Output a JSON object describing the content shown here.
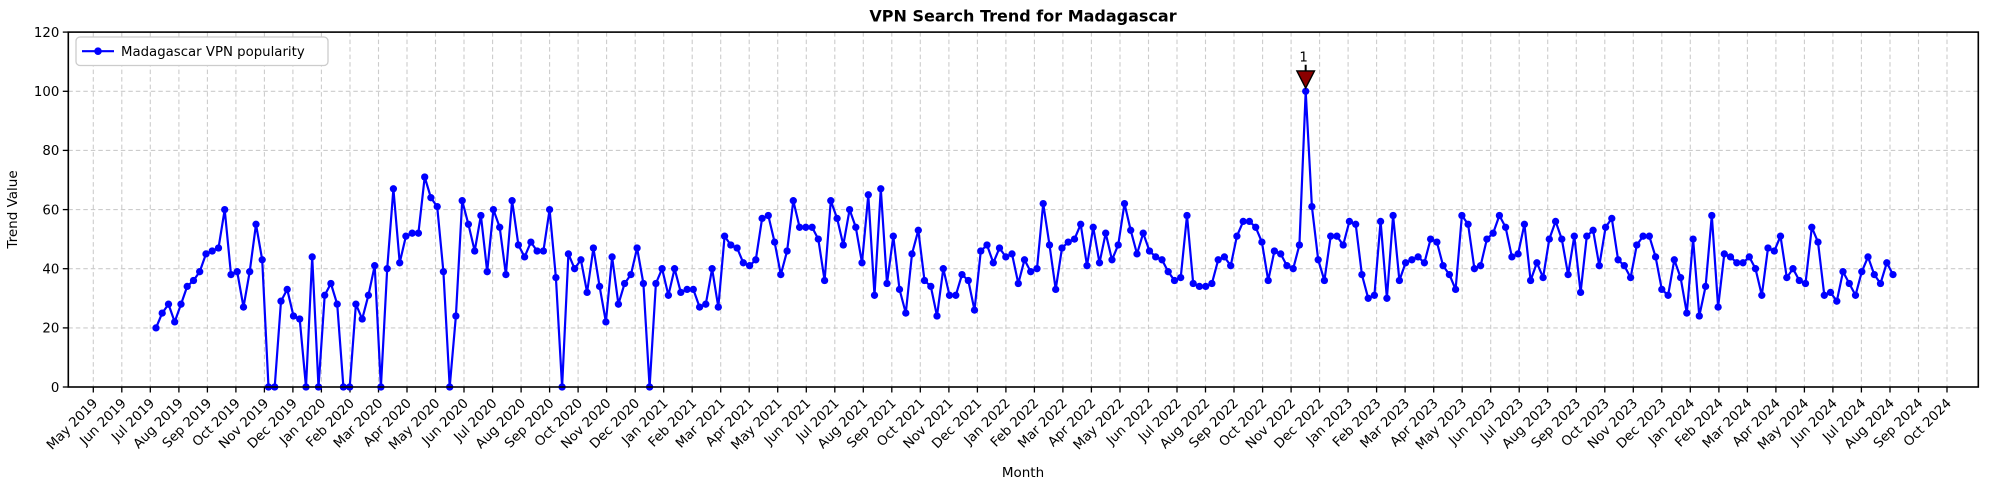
{
  "figure": {
    "background": "#ffffff"
  },
  "chart_data": {
    "type": "line",
    "title": "VPN Search Trend for Madagascar",
    "xlabel": "Month",
    "ylabel": "Trend Value",
    "grid": true,
    "legend": {
      "label": "Madagascar VPN popularity",
      "position": "upper-left",
      "line_color": "#0000ff",
      "marker": "circle"
    },
    "ylim": [
      0,
      120
    ],
    "yticks": [
      0,
      20,
      40,
      60,
      80,
      100,
      120
    ],
    "x_tick_labels": [
      "May 2019",
      "Jun 2019",
      "Jul 2019",
      "Aug 2019",
      "Sep 2019",
      "Oct 2019",
      "Nov 2019",
      "Dec 2019",
      "Jan 2020",
      "Feb 2020",
      "Mar 2020",
      "Apr 2020",
      "May 2020",
      "Jun 2020",
      "Jul 2020",
      "Aug 2020",
      "Sep 2020",
      "Oct 2020",
      "Nov 2020",
      "Dec 2020",
      "Jan 2021",
      "Feb 2021",
      "Mar 2021",
      "Apr 2021",
      "May 2021",
      "Jun 2021",
      "Jul 2021",
      "Aug 2021",
      "Sep 2021",
      "Oct 2021",
      "Nov 2021",
      "Dec 2021",
      "Jan 2022",
      "Feb 2022",
      "Mar 2022",
      "Apr 2022",
      "May 2022",
      "Jun 2022",
      "Jul 2022",
      "Aug 2022",
      "Sep 2022",
      "Oct 2022",
      "Nov 2022",
      "Dec 2022",
      "Jan 2023",
      "Feb 2023",
      "Mar 2023",
      "Apr 2023",
      "May 2023",
      "Jun 2023",
      "Jul 2023",
      "Aug 2023",
      "Sep 2023",
      "Oct 2023",
      "Nov 2023",
      "Dec 2023",
      "Jan 2024",
      "Feb 2024",
      "Mar 2024",
      "Apr 2024",
      "May 2024",
      "Jun 2024",
      "Jul 2024",
      "Aug 2024",
      "Sep 2024",
      "Oct 2024"
    ],
    "series": [
      {
        "name": "Madagascar VPN popularity",
        "color": "#0000ff",
        "values": [
          20,
          25,
          28,
          22,
          28,
          34,
          36,
          39,
          45,
          46,
          47,
          60,
          38,
          39,
          27,
          39,
          55,
          43,
          0,
          0,
          29,
          33,
          24,
          23,
          0,
          44,
          0,
          31,
          35,
          28,
          0,
          0,
          28,
          23,
          31,
          41,
          0,
          40,
          67,
          42,
          51,
          52,
          52,
          71,
          64,
          61,
          39,
          0,
          24,
          63,
          55,
          46,
          58,
          39,
          60,
          54,
          38,
          63,
          48,
          44,
          49,
          46,
          46,
          60,
          37,
          0,
          45,
          40,
          43,
          32,
          47,
          34,
          22,
          44,
          28,
          35,
          38,
          47,
          35,
          0,
          35,
          40,
          31,
          40,
          32,
          33,
          33,
          27,
          28,
          40,
          27,
          51,
          48,
          47,
          42,
          41,
          43,
          57,
          58,
          49,
          38,
          46,
          63,
          54,
          54,
          54,
          50,
          36,
          63,
          57,
          48,
          60,
          54,
          42,
          65,
          31,
          67,
          35,
          51,
          33,
          25,
          45,
          53,
          36,
          34,
          24,
          40,
          31,
          31,
          38,
          36,
          26,
          46,
          48,
          42,
          47,
          44,
          45,
          35,
          43,
          39,
          40,
          62,
          48,
          33,
          47,
          49,
          50,
          55,
          41,
          54,
          42,
          52,
          43,
          48,
          62,
          53,
          45,
          52,
          46,
          44,
          43,
          39,
          36,
          37,
          58,
          35,
          34,
          34,
          35,
          43,
          44,
          41,
          51,
          56,
          56,
          54,
          49,
          36,
          46,
          45,
          41,
          40,
          48,
          100,
          61,
          43,
          36,
          51,
          51,
          48,
          56,
          55,
          38,
          30,
          31,
          56,
          30,
          58,
          36,
          42,
          43,
          44,
          42,
          50,
          49,
          41,
          38,
          33,
          58,
          55,
          40,
          41,
          50,
          52,
          58,
          54,
          44,
          45,
          55,
          36,
          42,
          37,
          50,
          56,
          50,
          38,
          51,
          32,
          51,
          53,
          41,
          54,
          57,
          43,
          41,
          37,
          48,
          51,
          51,
          44,
          33,
          31,
          43,
          37,
          25,
          50,
          24,
          34,
          58,
          27,
          45,
          44,
          42,
          42,
          44,
          40,
          31,
          47,
          46,
          51,
          37,
          40,
          36,
          35,
          54,
          49,
          31,
          32,
          29,
          39,
          35,
          31,
          39,
          44,
          38,
          35,
          42,
          38
        ]
      }
    ],
    "annotation": {
      "label": "1",
      "value": 100,
      "at": "Nov 2022",
      "color": "#8b0000",
      "marker": "triangle-down"
    }
  }
}
